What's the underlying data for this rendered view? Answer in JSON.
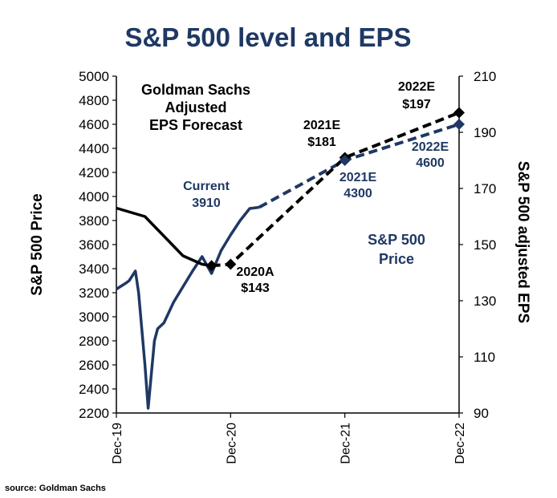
{
  "source": "source: Goldman Sachs",
  "colors": {
    "title": "#1f3864",
    "price": "#1f3864",
    "eps": "#000000",
    "axis": "#000000"
  },
  "chart_data": {
    "type": "line",
    "title": "S&P 500 level and EPS",
    "ylabel_left": "S&P 500 Price",
    "ylabel_right": "S&P 500 adjusted EPS",
    "xlabel": "",
    "x_ticks": [
      "Dec-19",
      "Dec-20",
      "Dec-21",
      "Dec-22"
    ],
    "ylim_left": [
      2200,
      5000
    ],
    "ylim_right": [
      90,
      210
    ],
    "y_ticks_left": [
      2200,
      2400,
      2600,
      2800,
      3000,
      3200,
      3400,
      3600,
      3800,
      4000,
      4200,
      4400,
      4600,
      4800,
      5000
    ],
    "y_ticks_right": [
      90,
      110,
      130,
      150,
      170,
      190,
      210
    ],
    "grid": false,
    "series": [
      {
        "name": "S&P 500 Price",
        "axis": "left",
        "style": "solid",
        "points": [
          [
            "Dec-19",
            3230
          ],
          [
            "Jan-20",
            3280
          ],
          [
            "Jan-20",
            3300
          ],
          [
            "Feb-20",
            3380
          ],
          [
            "Feb-20",
            3200
          ],
          [
            "Mar-20",
            2600
          ],
          [
            "Mar-20",
            2240
          ],
          [
            "Apr-20",
            2800
          ],
          [
            "Apr-20",
            2900
          ],
          [
            "May-20",
            2950
          ],
          [
            "Jun-20",
            3120
          ],
          [
            "Jul-20",
            3250
          ],
          [
            "Aug-20",
            3380
          ],
          [
            "Sep-20",
            3500
          ],
          [
            "Oct-20",
            3360
          ],
          [
            "Nov-20",
            3550
          ],
          [
            "Dec-20",
            3680
          ],
          [
            "Jan-21",
            3800
          ],
          [
            "Feb-21",
            3900
          ],
          [
            "Mar-21",
            3910
          ]
        ]
      },
      {
        "name": "S&P 500 Price forecast",
        "axis": "left",
        "style": "dashed",
        "points": [
          [
            "Mar-21",
            3910
          ],
          [
            "Dec-21",
            4300
          ],
          [
            "Dec-22",
            4600
          ]
        ]
      },
      {
        "name": "S&P 500 adjusted EPS",
        "axis": "right",
        "style": "solid",
        "points": [
          [
            "Dec-19",
            163
          ],
          [
            "Mar-20",
            160
          ],
          [
            "May-20",
            153
          ],
          [
            "Jul-20",
            146
          ],
          [
            "Sep-20",
            143
          ],
          [
            "Oct-20",
            142.5
          ]
        ]
      },
      {
        "name": "Goldman Sachs Adjusted EPS Forecast",
        "axis": "right",
        "style": "dashed",
        "points": [
          [
            "Oct-20",
            142.5
          ],
          [
            "Dec-20",
            143
          ],
          [
            "Dec-21",
            181
          ],
          [
            "Dec-22",
            197
          ]
        ]
      }
    ],
    "markers": [
      {
        "series": "eps",
        "x": "Oct-20",
        "value": 142.5
      },
      {
        "series": "eps",
        "x": "Dec-20",
        "value": 143
      },
      {
        "series": "eps",
        "x": "Dec-21",
        "value": 181
      },
      {
        "series": "eps",
        "x": "Dec-22",
        "value": 197
      },
      {
        "series": "price",
        "x": "Dec-21",
        "value": 4300
      },
      {
        "series": "price",
        "x": "Dec-22",
        "value": 4600
      }
    ],
    "annotations": {
      "eps_forecast": [
        "Goldman Sachs",
        "Adjusted",
        "EPS Forecast"
      ],
      "current": [
        "Current",
        "3910"
      ],
      "eps_2020a": [
        "2020A",
        "$143"
      ],
      "eps_2021e": [
        "2021E",
        "$181"
      ],
      "eps_2022e": [
        "2022E",
        "$197"
      ],
      "price_2021e": [
        "2021E",
        "4300"
      ],
      "price_2022e": [
        "2022E",
        "4600"
      ],
      "price_series": [
        "S&P 500",
        "Price"
      ]
    }
  }
}
